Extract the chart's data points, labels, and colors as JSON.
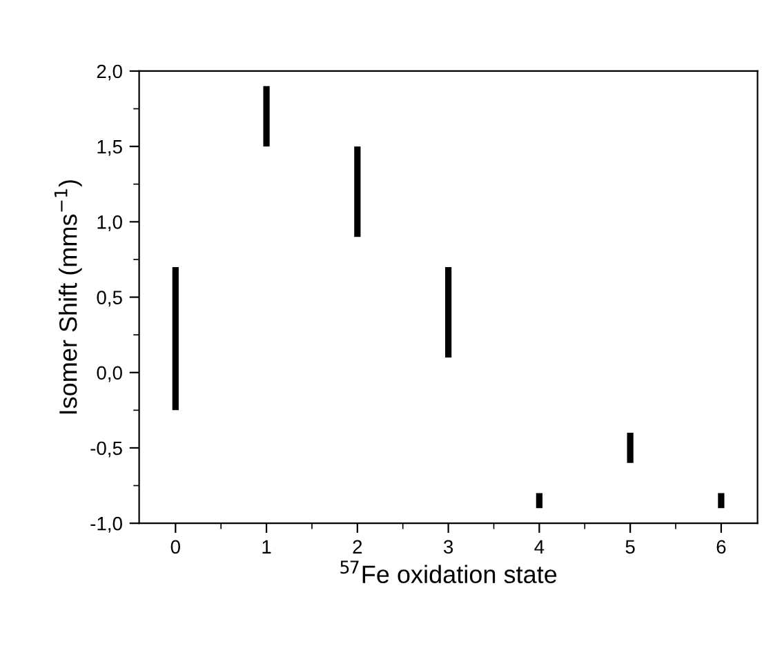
{
  "chart_data": {
    "type": "bar",
    "xlabel": "$^{57}$Fe oxidation state",
    "ylabel": "Isomer Shift (mms$^{−1}$)",
    "x": [
      0,
      1,
      2,
      3,
      4,
      5,
      6
    ],
    "base": [
      -0.25,
      1.5,
      0.9,
      0.1,
      -0.9,
      -0.6,
      -0.9
    ],
    "values": [
      0.95,
      0.4,
      0.6,
      0.6,
      0.1,
      0.2,
      0.1
    ],
    "color": "#000000",
    "xlim": [
      -0.4,
      6.4
    ],
    "xticks": [
      0,
      1,
      2,
      3,
      4,
      5,
      6
    ],
    "ylim": [
      -1,
      2
    ],
    "yticks": [
      {
        "value": -1,
        "label": "-1,0"
      },
      {
        "value": -0.5,
        "label": "-0,5"
      },
      {
        "value": 0,
        "label": "0,0"
      },
      {
        "value": 0.5,
        "label": "0,5"
      },
      {
        "value": 1,
        "label": "1,0"
      },
      {
        "value": 1.5,
        "label": "1,5"
      },
      {
        "value": 2,
        "label": "2,0"
      }
    ],
    "grid": false,
    "legend": false
  }
}
